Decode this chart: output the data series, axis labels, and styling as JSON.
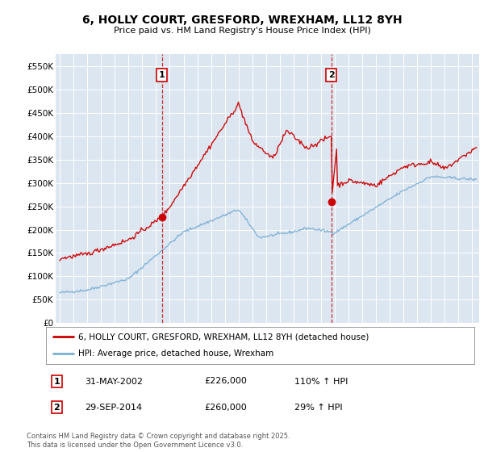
{
  "title": "6, HOLLY COURT, GRESFORD, WREXHAM, LL12 8YH",
  "subtitle": "Price paid vs. HM Land Registry's House Price Index (HPI)",
  "fig_bg_color": "#ffffff",
  "plot_bg_color": "#dce6f1",
  "red_color": "#cc0000",
  "blue_color": "#7bafd4",
  "vline_color": "#cc0000",
  "ylim": [
    0,
    575000
  ],
  "yticks": [
    0,
    50000,
    100000,
    150000,
    200000,
    250000,
    300000,
    350000,
    400000,
    450000,
    500000,
    550000
  ],
  "ytick_labels": [
    "£0",
    "£50K",
    "£100K",
    "£150K",
    "£200K",
    "£250K",
    "£300K",
    "£350K",
    "£400K",
    "£450K",
    "£500K",
    "£550K"
  ],
  "xlim_start": 1994.7,
  "xlim_end": 2025.5,
  "vline1_x": 2002.42,
  "vline2_x": 2014.75,
  "marker1_label": "1",
  "marker2_label": "2",
  "purchase1_x": 2002.42,
  "purchase1_y": 226000,
  "purchase2_x": 2014.75,
  "purchase2_y": 260000,
  "legend_line1": "6, HOLLY COURT, GRESFORD, WREXHAM, LL12 8YH (detached house)",
  "legend_line2": "HPI: Average price, detached house, Wrexham",
  "table_row1": [
    "1",
    "31-MAY-2002",
    "£226,000",
    "110% ↑ HPI"
  ],
  "table_row2": [
    "2",
    "29-SEP-2014",
    "£260,000",
    "29% ↑ HPI"
  ],
  "footer": "Contains HM Land Registry data © Crown copyright and database right 2025.\nThis data is licensed under the Open Government Licence v3.0.",
  "grid_color": "#ffffff"
}
